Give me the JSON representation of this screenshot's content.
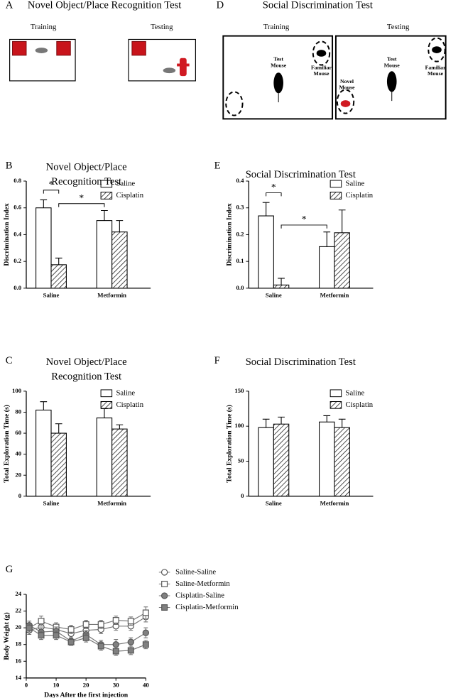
{
  "figure": {
    "panels": [
      {
        "letter": "A",
        "title": "Novel Object/Place Recognition Test",
        "labels": [
          "Training",
          "Testing"
        ]
      },
      {
        "letter": "D",
        "title": "Social Discrimination Test",
        "labels": [
          "Training",
          "Testing"
        ],
        "annotations": [
          "Test Mouse",
          "Familiar Mouse",
          "Novel Mouse",
          "Test Mouse",
          "Familiar Mouse"
        ]
      }
    ]
  },
  "chart_data": [
    {
      "type": "bar",
      "panel": "B",
      "title": "Novel Object/Place Recognition Test",
      "y_label": "Discrimination Index",
      "categories": [
        "Saline",
        "Metformin"
      ],
      "series": [
        {
          "name": "Saline",
          "color": "#ffffff",
          "values": [
            0.6,
            0.505
          ],
          "errors": [
            0.06,
            0.075
          ]
        },
        {
          "name": "Cisplatin",
          "color": "hatch",
          "values": [
            0.175,
            0.42
          ],
          "errors": [
            0.05,
            0.085
          ]
        }
      ],
      "annotations": [
        "*",
        "*"
      ],
      "ylim": [
        0,
        0.8
      ],
      "yticks": [
        {
          "value": 0,
          "label": "0.0"
        },
        0.2,
        0.4,
        0.6,
        0.8
      ]
    },
    {
      "type": "bar",
      "panel": "E",
      "title": "Social Discrimination Test",
      "y_label": "Discrimination Index",
      "categories": [
        "Saline",
        "Metformin"
      ],
      "series": [
        {
          "name": "Saline",
          "color": "#ffffff",
          "values": [
            0.27,
            0.155
          ],
          "errors": [
            0.05,
            0.055
          ]
        },
        {
          "name": "Cisplatin",
          "color": "hatch",
          "values": [
            0.012,
            0.207
          ],
          "errors": [
            0.025,
            0.085
          ]
        }
      ],
      "annotations": [
        "*",
        "*"
      ],
      "ylim": [
        0,
        0.4
      ],
      "yticks": [
        {
          "value": 0,
          "label": "0.0"
        },
        0.1,
        0.2,
        0.3,
        0.4
      ]
    },
    {
      "type": "bar",
      "panel": "C",
      "title": "Novel Object/Place Recognition Test",
      "y_label": "Total Exploration Time (s)",
      "categories": [
        "Saline",
        "Metformin"
      ],
      "series": [
        {
          "name": "Saline",
          "color": "#ffffff",
          "values": [
            82,
            74.5
          ],
          "errors": [
            8,
            9
          ]
        },
        {
          "name": "Cisplatin",
          "color": "hatch",
          "values": [
            60,
            64
          ],
          "errors": [
            9,
            4
          ]
        }
      ],
      "ylim": [
        0,
        100
      ],
      "yticks": [
        0,
        20,
        40,
        60,
        80,
        100
      ]
    },
    {
      "type": "bar",
      "panel": "F",
      "title": "Social Discrimination Test",
      "y_label": "Total Exploration Time (s)",
      "categories": [
        "Saline",
        "Metformin"
      ],
      "series": [
        {
          "name": "Saline",
          "color": "#ffffff",
          "values": [
            98,
            106
          ],
          "errors": [
            12,
            9
          ]
        },
        {
          "name": "Cisplatin",
          "color": "hatch",
          "values": [
            103,
            98
          ],
          "errors": [
            10,
            12
          ]
        }
      ],
      "ylim": [
        0,
        150
      ],
      "yticks": [
        0,
        50,
        100,
        150
      ]
    },
    {
      "type": "line",
      "panel": "G",
      "x_label": "Days After the first injection",
      "y_label": "Body Weight (g)",
      "x": [
        1,
        5,
        10,
        15,
        20,
        25,
        30,
        35,
        40
      ],
      "series": [
        {
          "name": "Saline-Saline",
          "color": "#ffffff",
          "marker": "circle",
          "values": [
            19.7,
            20.1,
            19.8,
            19.3,
            19.7,
            19.8,
            20.2,
            20.2,
            21.3
          ],
          "errors": [
            0.5,
            0.5,
            0.5,
            0.5,
            0.5,
            0.5,
            0.5,
            0.5,
            0.6
          ]
        },
        {
          "name": "Saline-Metformin",
          "color": "#ffffff",
          "marker": "square",
          "values": [
            20.0,
            20.8,
            20.1,
            19.8,
            20.4,
            20.4,
            20.9,
            20.8,
            21.8
          ],
          "errors": [
            0.5,
            0.6,
            0.5,
            0.5,
            0.5,
            0.5,
            0.5,
            0.5,
            0.7
          ]
        },
        {
          "name": "Cisplatin-Saline",
          "color": "#808080",
          "marker": "circle",
          "values": [
            20.3,
            19.5,
            19.6,
            18.4,
            19.2,
            18.0,
            18.0,
            18.3,
            19.4
          ],
          "errors": [
            0.5,
            0.5,
            0.5,
            0.4,
            0.5,
            0.5,
            0.6,
            0.5,
            0.6
          ]
        },
        {
          "name": "Cisplatin-Metformin",
          "color": "#808080",
          "marker": "square",
          "values": [
            20.0,
            19.1,
            19.1,
            18.3,
            18.8,
            17.8,
            17.2,
            17.3,
            18.0
          ],
          "errors": [
            0.5,
            0.5,
            0.5,
            0.4,
            0.5,
            0.5,
            0.5,
            0.5,
            0.5
          ]
        }
      ],
      "xlim": [
        0,
        40
      ],
      "xticks": [
        0,
        10,
        20,
        30,
        40
      ],
      "ylim": [
        14,
        24
      ],
      "yticks": [
        14,
        16,
        18,
        20,
        22,
        24
      ]
    }
  ]
}
